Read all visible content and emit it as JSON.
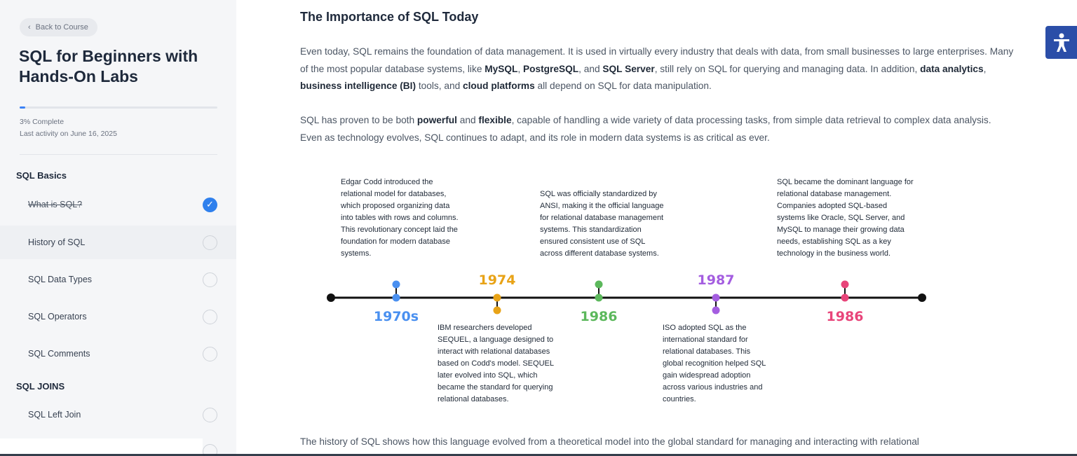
{
  "sidebar": {
    "back_label": "Back to Course",
    "course_title": "SQL for Beginners with Hands-On Labs",
    "progress_percent": 3,
    "progress_text": "3% Complete",
    "last_activity": "Last activity on June 16, 2025",
    "sections": [
      {
        "title": "SQL Basics",
        "lessons": [
          {
            "label": "What is SQL?",
            "status": "completed"
          },
          {
            "label": "History of SQL",
            "status": "active"
          },
          {
            "label": "SQL Data Types",
            "status": "incomplete"
          },
          {
            "label": "SQL Operators",
            "status": "incomplete"
          },
          {
            "label": "SQL Comments",
            "status": "incomplete"
          }
        ]
      },
      {
        "title": "SQL JOINS",
        "lessons": [
          {
            "label": "SQL Left Join",
            "status": "incomplete"
          }
        ]
      }
    ]
  },
  "content": {
    "heading": "The Importance of SQL Today",
    "para1": {
      "t1": "Even today, SQL remains the foundation of data management. It is used in virtually every industry that deals with data, from small businesses to large enterprises. Many of the most popular database systems, like ",
      "b1": "MySQL",
      "t2": ", ",
      "b2": "PostgreSQL",
      "t3": ", and ",
      "b3": "SQL Server",
      "t4": ", still rely on SQL for querying and managing data. In addition, ",
      "b4": "data analytics",
      "t5": ", ",
      "b5": "business intelligence (BI)",
      "t6": " tools, and ",
      "b6": "cloud platforms",
      "t7": " all depend on SQL for data manipulation."
    },
    "para2": {
      "t1": "SQL has proven to be both ",
      "b1": "powerful",
      "t2": " and ",
      "b2": "flexible",
      "t3": ", capable of handling a wide variety of data processing tasks, from simple data retrieval to complex data analysis. Even as technology evolves, SQL continues to adapt, and its role in modern data systems is as critical as ever."
    },
    "para3": "The history of SQL shows how this language evolved from a theoretical model into the global standard for managing and interacting with relational"
  },
  "timeline": {
    "events": [
      {
        "year": "1970s",
        "color": "#4a90f0",
        "position": "below-label-above-text",
        "text": "Edgar Codd introduced the relational model for databases, which proposed organizing data into tables with rows and columns. This revolutionary concept laid the foundation for modern database systems."
      },
      {
        "year": "1974",
        "color": "#e8a317",
        "position": "above-label-below-text",
        "text": "IBM researchers developed SEQUEL, a language designed to interact with relational databases based on Codd's model. SEQUEL later evolved into SQL, which became the standard for querying relational databases."
      },
      {
        "year": "1986",
        "color": "#5cb85c",
        "position": "below-label-above-text",
        "text": "SQL was officially standardized by ANSI, making it the official language for relational database management systems. This standardization ensured consistent use of SQL across different database systems."
      },
      {
        "year": "1987",
        "color": "#a45de0",
        "position": "above-label-below-text",
        "text": "ISO adopted SQL as the international standard for relational databases. This global recognition helped SQL gain widespread adoption across various industries and countries."
      },
      {
        "year": "1986",
        "color": "#e8457a",
        "position": "below-label-above-text",
        "text": "SQL became the dominant language for relational database management. Companies adopted SQL-based systems like Oracle, SQL Server, and MySQL to manage their growing data needs, establishing SQL as a key technology in the business world."
      }
    ]
  },
  "icons": {
    "back": "chevron-left-icon",
    "completed": "check-circle-icon",
    "incomplete": "empty-circle-icon",
    "accessibility": "accessibility-person-icon"
  },
  "colors": {
    "accent": "#2f80ed",
    "accessibility_bg": "#2b4ea8"
  }
}
